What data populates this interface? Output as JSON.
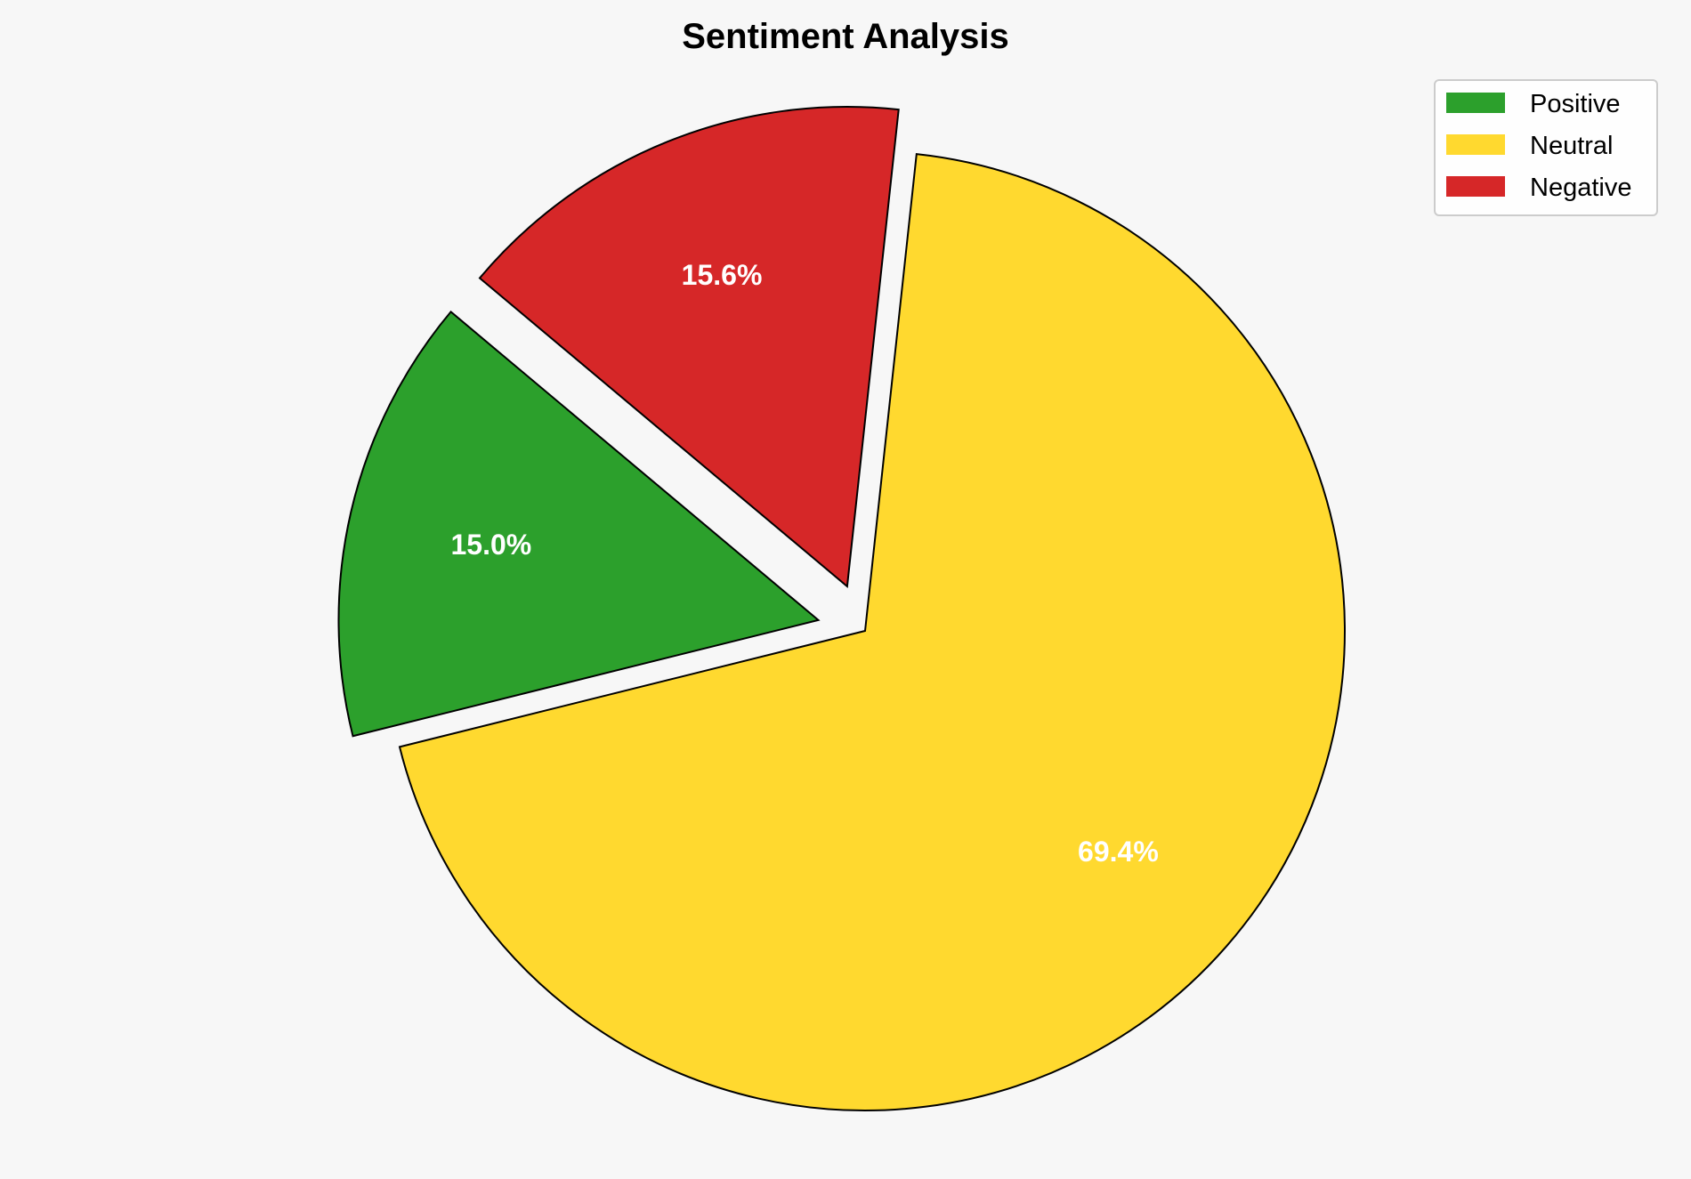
{
  "chart_data": {
    "type": "pie",
    "title": "Sentiment Analysis",
    "categories": [
      "Positive",
      "Neutral",
      "Negative"
    ],
    "values": [
      15.0,
      69.4,
      15.6
    ],
    "labels": [
      "15.0%",
      "69.4%",
      "15.6%"
    ],
    "colors": [
      "#2ca02c",
      "#ffd92f",
      "#d62728"
    ],
    "explode": [
      0.1,
      0,
      0.1
    ],
    "start_angle": 140,
    "direction": "counterclockwise",
    "edge_color": "#000000",
    "legend": {
      "entries": [
        "Positive",
        "Neutral",
        "Negative"
      ],
      "placement": "top-right"
    }
  }
}
